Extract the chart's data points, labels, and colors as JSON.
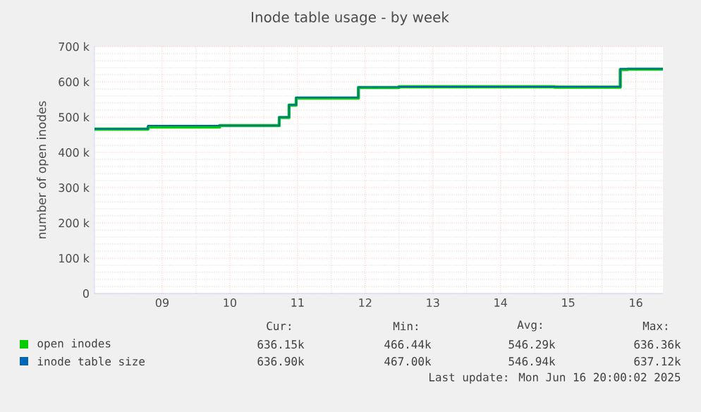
{
  "chart_data": {
    "type": "step",
    "title": "Inode table usage - by week",
    "ylabel": "number of open inodes",
    "x": [
      8.5,
      9.29,
      10.35,
      11.23,
      11.375,
      11.48,
      12.4,
      13.0,
      15.3,
      16.27,
      16.38,
      16.9
    ],
    "series": [
      {
        "name": "open inodes",
        "color": "#00cc00",
        "values": [
          466,
          472,
          476,
          499,
          534,
          554,
          584,
          586,
          585,
          635,
          636,
          636
        ]
      },
      {
        "name": "inode table size",
        "color": "#0066b3",
        "values": [
          467,
          476,
          476,
          500,
          535,
          556,
          585,
          586,
          586,
          637,
          637,
          637
        ]
      }
    ],
    "xlim": [
      8.5,
      16.9
    ],
    "xticks": [
      {
        "value": 9.5,
        "label": "09"
      },
      {
        "value": 10.5,
        "label": "10"
      },
      {
        "value": 11.5,
        "label": "11"
      },
      {
        "value": 12.5,
        "label": "12"
      },
      {
        "value": 13.5,
        "label": "13"
      },
      {
        "value": 14.5,
        "label": "14"
      },
      {
        "value": 15.5,
        "label": "15"
      },
      {
        "value": 16.5,
        "label": "16"
      }
    ],
    "ylim": [
      0,
      700
    ],
    "yticks": [
      0,
      {
        "value": 100,
        "label": "100 k"
      },
      {
        "value": 200,
        "label": "200 k"
      },
      {
        "value": 300,
        "label": "300 k"
      },
      {
        "value": 400,
        "label": "400 k"
      },
      {
        "value": 500,
        "label": "500 k"
      },
      {
        "value": 600,
        "label": "600 k"
      },
      {
        "value": 700,
        "label": "700 k"
      }
    ],
    "grid": true,
    "legend": "bottom",
    "annotations": [
      "Cur:",
      "Min:",
      "Avg:",
      "Max:",
      "636.15k",
      "466.44k",
      "546.29k",
      "636.36k",
      "636.90k",
      "467.00k",
      "546.94k",
      "637.12k",
      "Last update: Mon Jun 16 20:00:02 2025"
    ]
  }
}
